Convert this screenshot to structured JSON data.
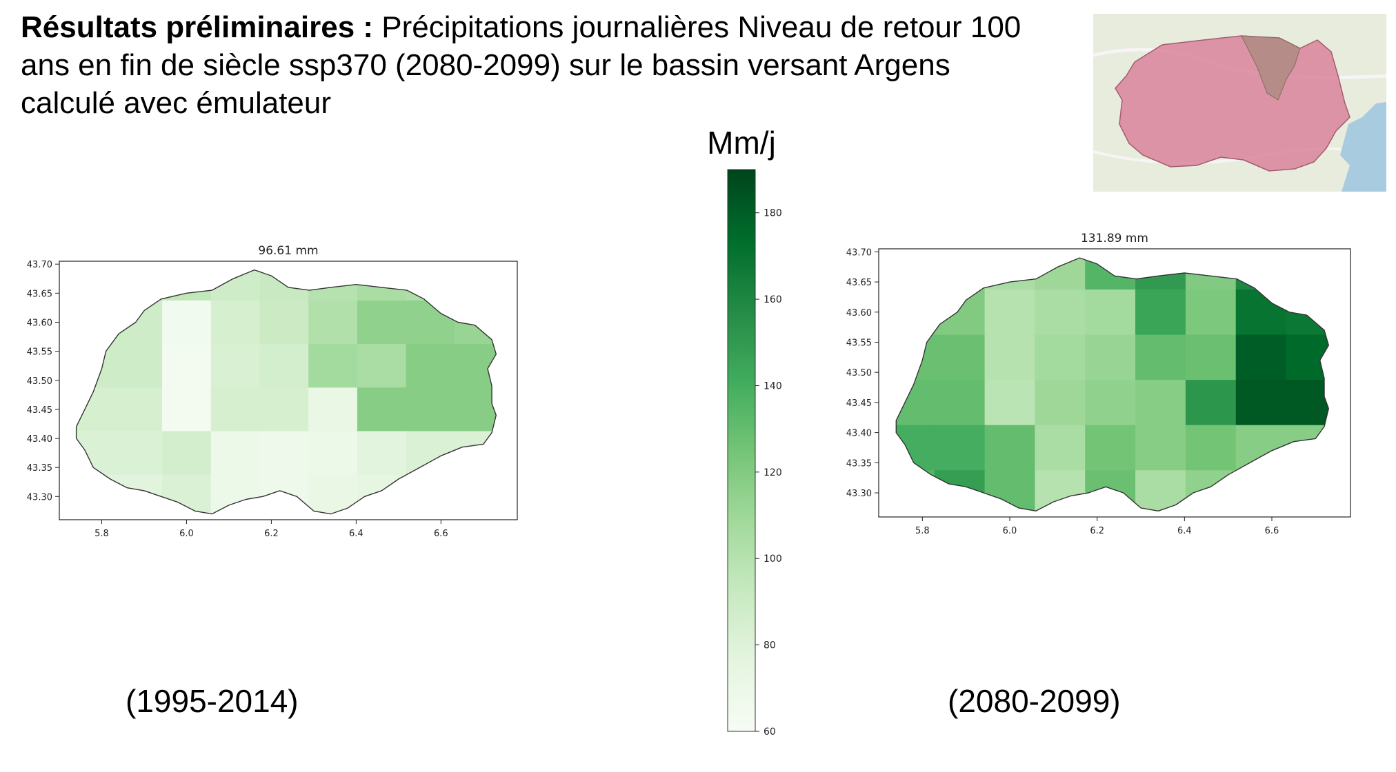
{
  "slide": {
    "title_bold": "Résultats préliminaires :",
    "title_rest": " Précipitations journalières Niveau de retour 100 ans en fin de siècle ssp370 (2080-2099) sur le bassin versant Argens calculé avec émulateur",
    "unit_label": "Mm/j"
  },
  "inset_map": {
    "fill_color": "#d9849b",
    "subbasin_color": "#b08c84",
    "sea_color": "#a8cbe0"
  },
  "chart_data": [
    {
      "type": "heatmap",
      "title": "96.61 mm",
      "caption": "(1995-2014)",
      "xlim": [
        5.7,
        6.78
      ],
      "ylim": [
        43.26,
        43.705
      ],
      "x_ticks": [
        "5.8",
        "6.0",
        "6.2",
        "6.4",
        "6.6"
      ],
      "y_ticks": [
        "43.30",
        "43.35",
        "43.40",
        "43.45",
        "43.50",
        "43.55",
        "43.60",
        "43.65",
        "43.70"
      ],
      "cell_x_centers": [
        5.77,
        5.885,
        6.0,
        6.115,
        6.23,
        6.345,
        6.46,
        6.575,
        6.69
      ],
      "cell_y_centers": [
        43.675,
        43.6,
        43.525,
        43.45,
        43.375,
        43.3
      ],
      "values": [
        [
          95,
          95,
          95,
          88,
          92,
          100,
          105,
          103,
          100
        ],
        [
          90,
          88,
          65,
          85,
          90,
          102,
          115,
          115,
          112
        ],
        [
          88,
          88,
          64,
          83,
          86,
          108,
          105,
          118,
          118
        ],
        [
          85,
          85,
          64,
          85,
          85,
          72,
          118,
          118,
          118
        ],
        [
          82,
          82,
          86,
          70,
          68,
          70,
          78,
          82,
          82
        ],
        [
          78,
          78,
          82,
          70,
          68,
          72,
          75,
          75,
          75
        ]
      ]
    },
    {
      "type": "heatmap",
      "title": "131.89 mm",
      "caption": "(2080-2099)",
      "xlim": [
        5.7,
        6.78
      ],
      "ylim": [
        43.26,
        43.705
      ],
      "x_ticks": [
        "5.8",
        "6.0",
        "6.2",
        "6.4",
        "6.6"
      ],
      "y_ticks": [
        "43.30",
        "43.35",
        "43.40",
        "43.45",
        "43.50",
        "43.55",
        "43.60",
        "43.65",
        "43.70"
      ],
      "cell_x_centers": [
        5.77,
        5.885,
        6.0,
        6.115,
        6.23,
        6.345,
        6.46,
        6.575,
        6.69
      ],
      "cell_y_centers": [
        43.675,
        43.6,
        43.525,
        43.45,
        43.375,
        43.3
      ],
      "values": [
        [
          120,
          120,
          105,
          110,
          135,
          150,
          120,
          160,
          160
        ],
        [
          125,
          120,
          100,
          105,
          108,
          145,
          122,
          170,
          168
        ],
        [
          128,
          128,
          100,
          108,
          112,
          130,
          128,
          180,
          175
        ],
        [
          130,
          130,
          98,
          110,
          115,
          118,
          152,
          182,
          182
        ],
        [
          140,
          140,
          130,
          105,
          125,
          118,
          125,
          118,
          118
        ],
        [
          135,
          148,
          130,
          100,
          128,
          105,
          115,
          118,
          118
        ]
      ]
    }
  ],
  "colorbar": {
    "min": 60,
    "max": 190,
    "ticks": [
      "60",
      "80",
      "100",
      "120",
      "140",
      "160",
      "180"
    ],
    "colors": [
      "#f7fcf5",
      "#e5f5e0",
      "#c7e9c0",
      "#a1d99b",
      "#74c476",
      "#41ab5d",
      "#238b45",
      "#006d2c",
      "#00441b"
    ]
  }
}
